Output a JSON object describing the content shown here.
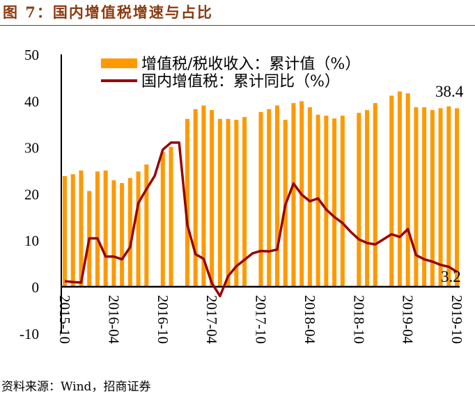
{
  "title": "图 7：国内增值税增速与占比",
  "source": "资料来源：Wind，招商证券",
  "chart_data": {
    "type": "bar+line",
    "title": "图 7：国内增值税增速与占比",
    "x": [
      "2015-10",
      "2015-11",
      "2015-12",
      "2016-01",
      "2016-02",
      "2016-03",
      "2016-04",
      "2016-05",
      "2016-06",
      "2016-07",
      "2016-08",
      "2016-09",
      "2016-10",
      "2016-11",
      "2016-12",
      "2017-01",
      "2017-02",
      "2017-03",
      "2017-04",
      "2017-05",
      "2017-06",
      "2017-07",
      "2017-08",
      "2017-09",
      "2017-10",
      "2017-11",
      "2017-12",
      "2018-01",
      "2018-02",
      "2018-03",
      "2018-04",
      "2018-05",
      "2018-06",
      "2018-07",
      "2018-08",
      "2018-09",
      "2018-10",
      "2018-11",
      "2018-12",
      "2019-01",
      "2019-02",
      "2019-03",
      "2019-04",
      "2019-05",
      "2019-06",
      "2019-07",
      "2019-08",
      "2019-09",
      "2019-10"
    ],
    "x_tick_labels": [
      "2015-10",
      "2016-04",
      "2016-10",
      "2017-04",
      "2017-10",
      "2018-04",
      "2018-10",
      "2019-04",
      "2019-10"
    ],
    "ylim": [
      -10,
      50
    ],
    "y_ticks": [
      "50",
      "40",
      "30",
      "20",
      "10",
      "0",
      "-10"
    ],
    "grid": false,
    "legend_position": "top",
    "series": [
      {
        "name": "增值税/税收收入：累计值（%）",
        "type": "bar",
        "color": "#FF9900",
        "values": [
          23.8,
          24.2,
          25.0,
          20.6,
          24.8,
          25.0,
          22.9,
          22.3,
          23.4,
          24.8,
          26.3,
          null,
          29.0,
          30.1,
          null,
          36.1,
          38.2,
          39.0,
          38.0,
          36.1,
          36.1,
          35.9,
          36.5,
          null,
          37.6,
          38.2,
          39.0,
          35.9,
          39.5,
          39.9,
          38.6,
          37.0,
          36.8,
          36.2,
          36.8,
          null,
          37.4,
          38.0,
          39.5,
          null,
          41.1,
          42.0,
          41.6,
          38.6,
          38.6,
          38.0,
          38.4,
          38.8,
          38.4
        ]
      },
      {
        "name": "国内增值税：累计同比（%）",
        "type": "line",
        "color": "#990000",
        "values": [
          1.2,
          1.0,
          0.9,
          10.4,
          10.4,
          6.5,
          6.5,
          5.9,
          8.5,
          18.0,
          21.0,
          23.8,
          29.5,
          31.0,
          31.0,
          13.3,
          7.0,
          6.0,
          0.8,
          -2.0,
          2.3,
          4.4,
          5.8,
          7.2,
          7.7,
          7.6,
          8.0,
          17.6,
          22.2,
          19.8,
          18.4,
          19.0,
          16.6,
          15.0,
          13.7,
          11.8,
          10.2,
          9.4,
          9.1,
          10.2,
          11.3,
          10.7,
          12.4,
          6.8,
          5.9,
          5.4,
          4.7,
          4.3,
          3.2
        ]
      }
    ],
    "annotations": [
      "38.4",
      "3.2"
    ]
  }
}
